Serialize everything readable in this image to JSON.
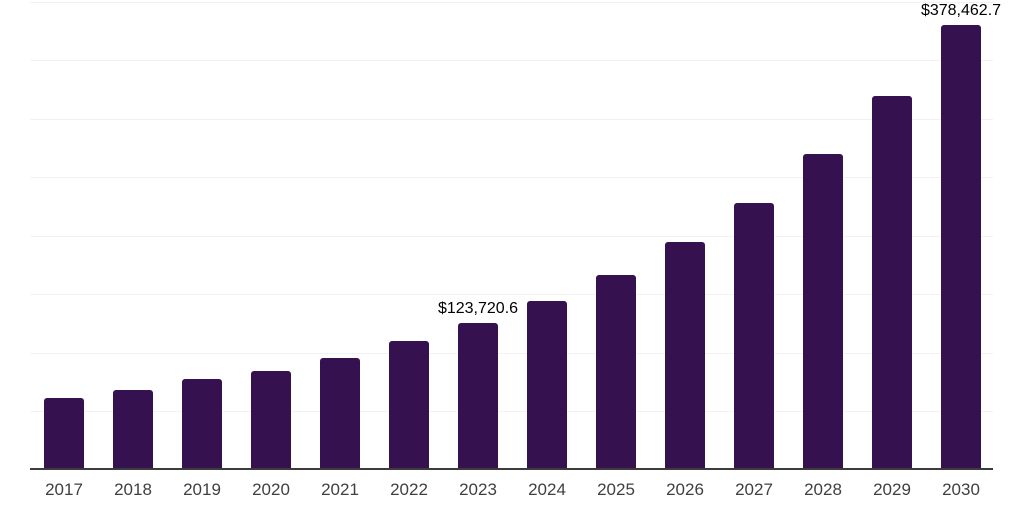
{
  "chart_data": {
    "type": "bar",
    "title": "",
    "xlabel": "",
    "ylabel": "",
    "categories": [
      "2017",
      "2018",
      "2019",
      "2020",
      "2021",
      "2022",
      "2023",
      "2024",
      "2025",
      "2026",
      "2027",
      "2028",
      "2029",
      "2030"
    ],
    "values": [
      59700,
      66500,
      75900,
      82700,
      93800,
      108400,
      123720.6,
      143000,
      165200,
      193600,
      226900,
      268200,
      317800,
      378462.7
    ],
    "data_labels": [
      "",
      "",
      "",
      "",
      "",
      "",
      "$123,720.6",
      "",
      "",
      "",
      "",
      "",
      "",
      "$378,462.7"
    ],
    "ylim": [
      0,
      400000
    ],
    "grid_step": 50000,
    "grid": "horizontal",
    "legend_position": "none",
    "bar_color": "#361150",
    "axis_line_color": "#3c3c3c",
    "gridline_color": "#f2f2f2",
    "tick_label_color": "#404040",
    "data_label_color": "#000000"
  }
}
